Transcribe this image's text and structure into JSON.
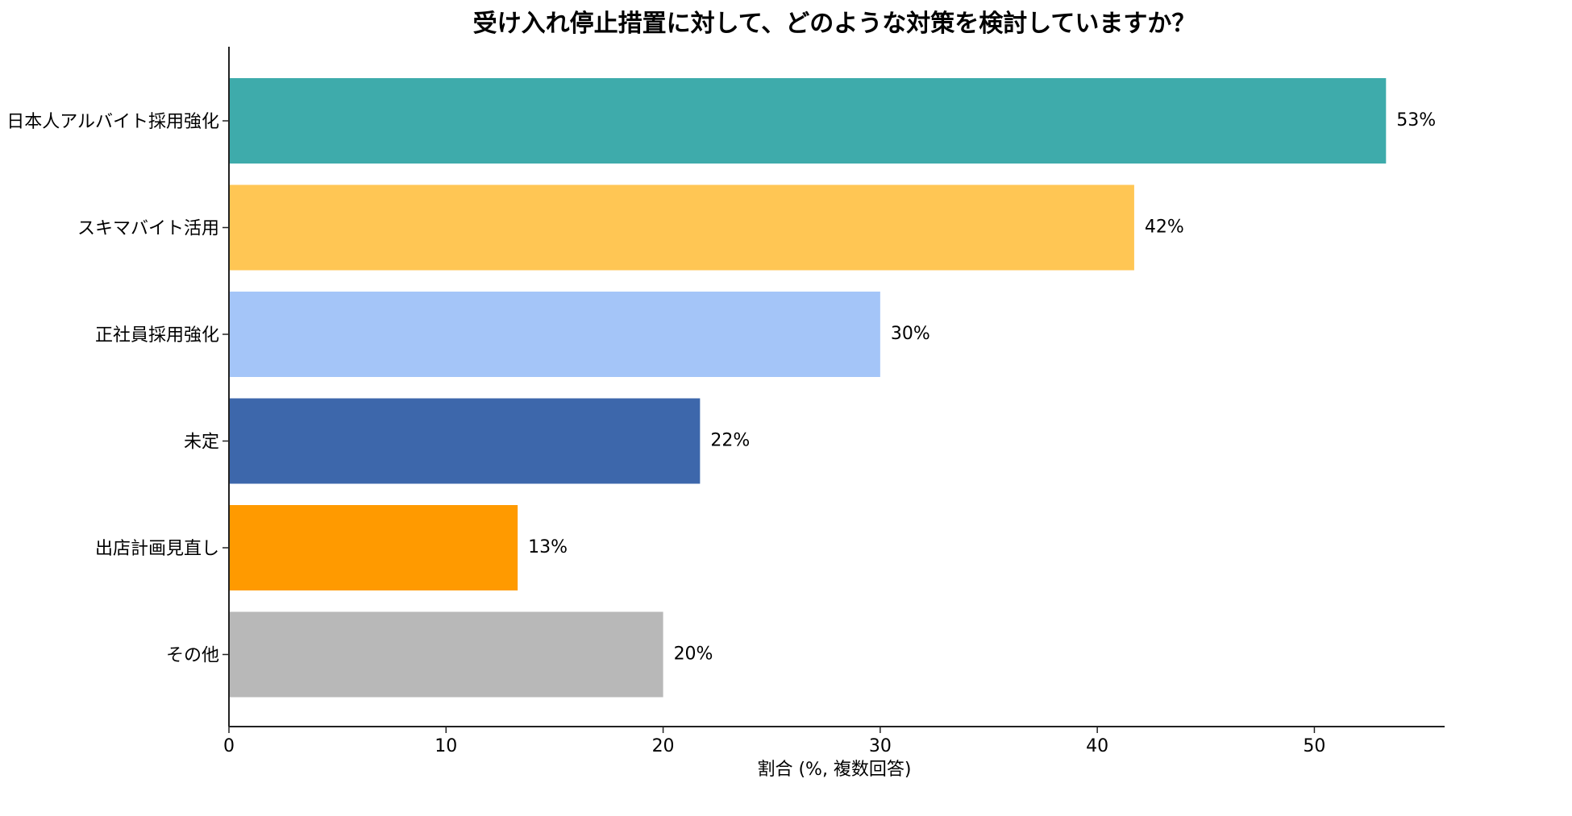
{
  "chart_data": {
    "type": "bar",
    "orientation": "horizontal",
    "title": "受け入れ停止措置に対して、どのような対策を検討していますか？",
    "xlabel": "割合 (%, 複数回答)",
    "ylabel": "",
    "xlim": [
      0,
      56
    ],
    "xticks": [
      0,
      10,
      20,
      30,
      40,
      50
    ],
    "grid": false,
    "categories": [
      "日本人アルバイト採用強化",
      "スキマバイト活用",
      "正社員採用強化",
      "未定",
      "出店計画見直し",
      "その他"
    ],
    "values": [
      53.3,
      41.7,
      30,
      21.7,
      13.3,
      20
    ],
    "value_labels": [
      "53%",
      "42%",
      "30%",
      "22%",
      "13%",
      "20%"
    ],
    "colors": [
      "#3eabab",
      "#ffc654",
      "#a4c5f8",
      "#3d67ab",
      "#ff9a00",
      "#b8b8b8"
    ]
  }
}
